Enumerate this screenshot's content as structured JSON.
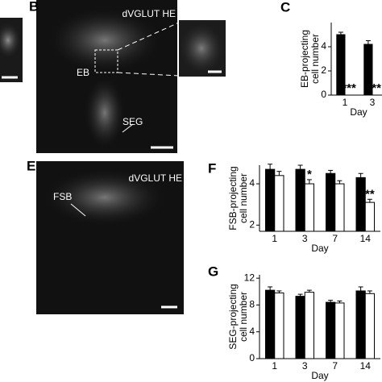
{
  "panels": {
    "B": {
      "label": "B",
      "stain": "dVGLUT HE",
      "regions": [
        "EB",
        "SEG"
      ]
    },
    "E": {
      "label": "E",
      "stain": "dVGLUT HE",
      "regions": [
        "FSB"
      ]
    },
    "C": {
      "label": "C"
    },
    "F": {
      "label": "F"
    },
    "G": {
      "label": "G"
    }
  },
  "chart_data": [
    {
      "type": "bar",
      "ylabel": [
        "EB-projecting",
        "cell number"
      ],
      "xlabel": "Day",
      "categories": [
        "1",
        "3"
      ],
      "series": [
        {
          "color": "#000000",
          "values": [
            5.0,
            4.2
          ],
          "errors": [
            0.2,
            0.3
          ]
        },
        {
          "color": "#ffffff",
          "values": [
            0,
            0
          ],
          "errors": [
            0,
            0
          ]
        }
      ],
      "ylim": [
        0,
        6
      ],
      "yticks": [
        0,
        2,
        4
      ],
      "annotations": [
        {
          "label": "***",
          "category": 0
        },
        {
          "label": "**",
          "category": 1
        }
      ]
    },
    {
      "type": "bar",
      "ylabel": [
        "FSB-projecting",
        "cell number"
      ],
      "xlabel": "Day",
      "categories": [
        "1",
        "3",
        "7",
        "14"
      ],
      "series": [
        {
          "color": "#000000",
          "values": [
            4.7,
            4.7,
            4.5,
            4.3
          ],
          "errors": [
            0.25,
            0.2,
            0.15,
            0.2
          ]
        },
        {
          "color": "#ffffff",
          "values": [
            4.4,
            4.0,
            4.0,
            3.1
          ],
          "errors": [
            0.2,
            0.2,
            0.15,
            0.15
          ]
        }
      ],
      "ylim": [
        1.7,
        4.9
      ],
      "yticks": [
        2,
        4
      ],
      "annotations": [
        {
          "label": "*",
          "category": 1
        },
        {
          "label": "**",
          "category": 3
        }
      ]
    },
    {
      "type": "bar",
      "ylabel": [
        "SEG-projecting",
        "cell number"
      ],
      "xlabel": "Day",
      "categories": [
        "1",
        "3",
        "7",
        "14"
      ],
      "series": [
        {
          "color": "#000000",
          "values": [
            10.2,
            9.3,
            8.4,
            10.1
          ],
          "errors": [
            0.5,
            0.3,
            0.3,
            0.6
          ]
        },
        {
          "color": "#ffffff",
          "values": [
            9.8,
            9.9,
            8.3,
            9.7
          ],
          "errors": [
            0.3,
            0.3,
            0.3,
            0.4
          ]
        }
      ],
      "ylim": [
        0,
        12.5
      ],
      "yticks": [
        0,
        4,
        8,
        12
      ],
      "annotations": []
    }
  ]
}
